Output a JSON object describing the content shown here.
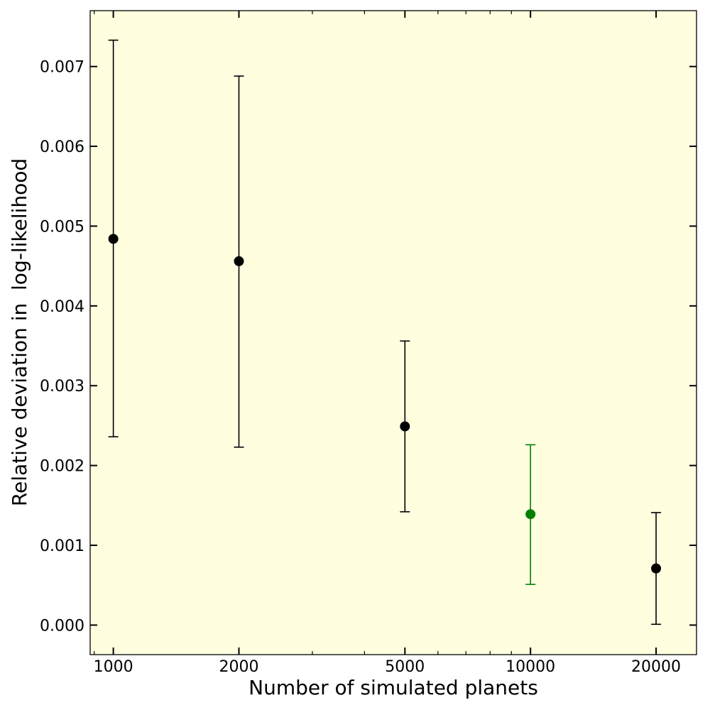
{
  "chart_data": {
    "type": "scatter",
    "title": "",
    "xlabel": "Number of simulated planets",
    "ylabel": "Relative deviation in  log-likelihood",
    "x_scale": "log",
    "xlim": [
      880,
      25000
    ],
    "ylim": [
      -0.00037,
      0.0077
    ],
    "x_ticks": [
      1000,
      2000,
      5000,
      10000,
      20000
    ],
    "x_tick_labels": [
      "1000",
      "2000",
      "5000",
      "10000",
      "20000"
    ],
    "y_ticks": [
      0.0,
      0.001,
      0.002,
      0.003,
      0.004,
      0.005,
      0.006,
      0.007
    ],
    "y_tick_labels": [
      "0.000",
      "0.001",
      "0.002",
      "0.003",
      "0.004",
      "0.005",
      "0.006",
      "0.007"
    ],
    "grid": false,
    "background_color": "#ffffe0",
    "points": [
      {
        "x": 1000,
        "y": 0.00484,
        "y_low": 0.00236,
        "y_high": 0.00733,
        "color": "#000000"
      },
      {
        "x": 2000,
        "y": 0.00456,
        "y_low": 0.00223,
        "y_high": 0.00688,
        "color": "#000000"
      },
      {
        "x": 5000,
        "y": 0.00249,
        "y_low": 0.00142,
        "y_high": 0.00356,
        "color": "#000000"
      },
      {
        "x": 10000,
        "y": 0.00139,
        "y_low": 0.00051,
        "y_high": 0.00226,
        "color": "#008000"
      },
      {
        "x": 20000,
        "y": 0.00071,
        "y_low": 1e-05,
        "y_high": 0.00141,
        "color": "#000000"
      }
    ]
  }
}
